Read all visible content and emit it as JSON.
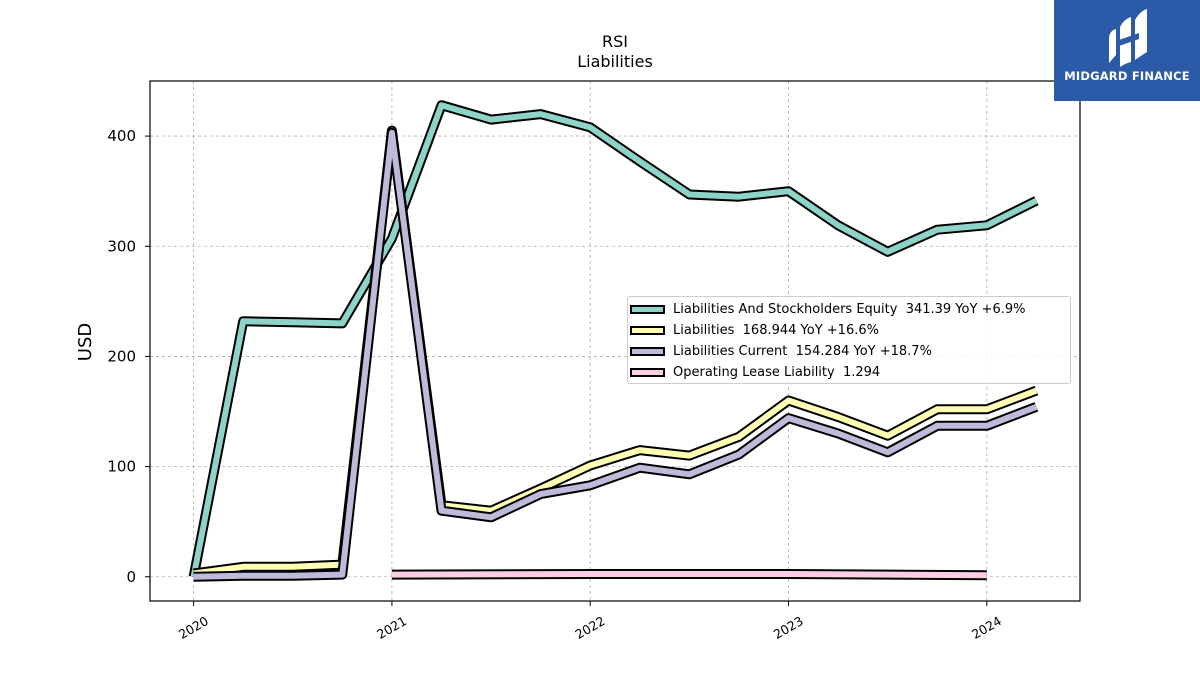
{
  "chart_data": {
    "type": "line",
    "title": "RSI",
    "subtitle": "Liabilities",
    "xlabel": "",
    "ylabel": "USD",
    "xlim": [
      2019.78,
      2024.47
    ],
    "ylim": [
      -22,
      450
    ],
    "x_ticks": [
      2020,
      2021,
      2022,
      2023,
      2024
    ],
    "x_tick_labels": [
      "2020",
      "2021",
      "2022",
      "2023",
      "2024"
    ],
    "y_ticks": [
      0,
      100,
      200,
      300,
      400
    ],
    "y_tick_labels": [
      "0",
      "100",
      "200",
      "300",
      "400"
    ],
    "grid": true,
    "legend_position": "center-right",
    "series": [
      {
        "name": "Liabilities And Stockholders Equity",
        "legend_label": "Liabilities And Stockholders Equity  341.39 YoY +6.9%",
        "color": "#8dd3c7",
        "x": [
          2020.0,
          2020.25,
          2020.5,
          2020.75,
          2021.0,
          2021.25,
          2021.5,
          2021.75,
          2022.0,
          2022.25,
          2022.5,
          2022.75,
          2023.0,
          2023.25,
          2023.5,
          2023.75,
          2024.0,
          2024.25
        ],
        "values": [
          0,
          232,
          231,
          230,
          307,
          428,
          415,
          420,
          408,
          377,
          347,
          345,
          350,
          319,
          295,
          315,
          319,
          341.39
        ]
      },
      {
        "name": "Liabilities",
        "legend_label": "Liabilities  168.944 YoY +16.6%",
        "color": "#ffffb3",
        "x": [
          2020.0,
          2020.25,
          2020.5,
          2020.75,
          2021.0,
          2021.25,
          2021.5,
          2021.75,
          2022.0,
          2022.25,
          2022.5,
          2022.75,
          2023.0,
          2023.25,
          2023.5,
          2023.75,
          2024.0,
          2024.25
        ],
        "values": [
          3,
          9,
          9,
          11,
          405,
          65,
          60,
          80,
          101,
          115,
          110,
          127,
          160,
          145,
          128,
          152,
          152,
          168.944
        ]
      },
      {
        "name": "Liabilities Current",
        "legend_label": "Liabilities Current  154.284 YoY +18.7%",
        "color": "#bebada",
        "x": [
          2020.0,
          2020.25,
          2020.5,
          2020.75,
          2021.0,
          2021.25,
          2021.5,
          2021.75,
          2022.0,
          2022.25,
          2022.5,
          2022.75,
          2023.0,
          2023.25,
          2023.5,
          2023.75,
          2024.0,
          2024.25
        ],
        "values": [
          0,
          1,
          1,
          2,
          403,
          60,
          54,
          75,
          83,
          99,
          93,
          111,
          144,
          130,
          113,
          137,
          137,
          154.284
        ]
      },
      {
        "name": "Operating Lease Liability",
        "legend_label": "Operating Lease Liability  1.294",
        "color": "#fccde5",
        "x": [
          2021.0,
          2022.0,
          2023.0,
          2024.0
        ],
        "values": [
          2,
          2.5,
          2.5,
          1.294
        ]
      }
    ]
  },
  "logo": {
    "text": "MIDGARD FINANCE"
  }
}
